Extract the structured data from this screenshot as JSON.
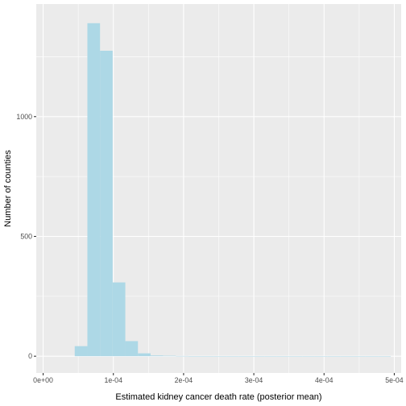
{
  "chart_data": {
    "type": "bar",
    "subtype": "histogram",
    "title": "",
    "xlabel": "Estimated kidney cancer death rate (posterior mean)",
    "ylabel": "Number of counties",
    "fill_color": "#add8e6",
    "panel_color": "#ebebeb",
    "grid": true,
    "legend": "none",
    "xlim": [
      -9.8e-06,
      0.0005098
    ],
    "ylim": [
      -70,
      1470
    ],
    "x_ticks": [
      0,
      0.0001,
      0.0002,
      0.0003,
      0.0004,
      0.0005
    ],
    "x_tick_labels": [
      "0e+00",
      "1e-04",
      "2e-04",
      "3e-04",
      "4e-04",
      "5e-04"
    ],
    "y_ticks": [
      0,
      500,
      1000
    ],
    "y_tick_labels": [
      "0",
      "500",
      "1000"
    ],
    "bin_width": 1.8e-05,
    "bins": [
      {
        "x": 5.4e-05,
        "count": 42
      },
      {
        "x": 7.2e-05,
        "count": 1390
      },
      {
        "x": 9e-05,
        "count": 1275
      },
      {
        "x": 0.000108,
        "count": 308
      },
      {
        "x": 0.000126,
        "count": 63
      },
      {
        "x": 0.000144,
        "count": 12
      },
      {
        "x": 0.000162,
        "count": 3
      },
      {
        "x": 0.00018,
        "count": 2
      },
      {
        "x": 0.000198,
        "count": 1
      },
      {
        "x": 0.000216,
        "count": 0
      },
      {
        "x": 0.000234,
        "count": 0
      },
      {
        "x": 0.000252,
        "count": 0
      },
      {
        "x": 0.00027,
        "count": 0
      },
      {
        "x": 0.000288,
        "count": 0
      },
      {
        "x": 0.000306,
        "count": 0
      },
      {
        "x": 0.000324,
        "count": 0
      },
      {
        "x": 0.000342,
        "count": 0
      },
      {
        "x": 0.00036,
        "count": 0
      },
      {
        "x": 0.000378,
        "count": 0
      },
      {
        "x": 0.000396,
        "count": 0
      },
      {
        "x": 0.000414,
        "count": 0
      },
      {
        "x": 0.000432,
        "count": 0
      },
      {
        "x": 0.00045,
        "count": 0
      },
      {
        "x": 0.000468,
        "count": 0
      },
      {
        "x": 0.000486,
        "count": 0
      }
    ]
  }
}
